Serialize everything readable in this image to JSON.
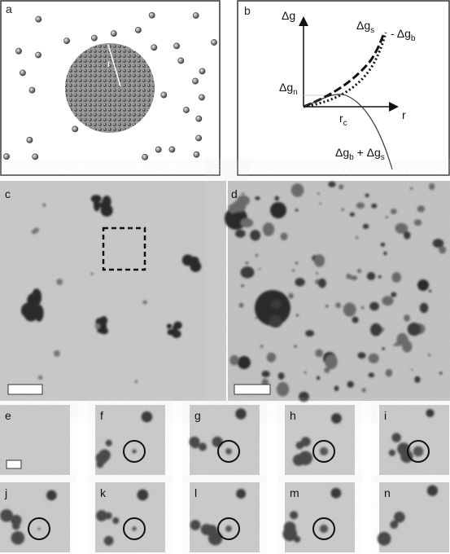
{
  "panel_a": {
    "letter": "a",
    "radius_label": "r"
  },
  "panel_b": {
    "letter": "b",
    "y_axis_label": "Δg",
    "x_axis_label": "r",
    "surface_label": [
      "Δg",
      "s"
    ],
    "bulk_label": [
      "- Δg",
      "b"
    ],
    "nucleation_label": [
      "Δg",
      "n"
    ],
    "critical_radius_label": [
      "r",
      "c"
    ],
    "total_label": [
      "Δg",
      "b",
      " + Δg",
      "s"
    ]
  },
  "panel_c": {
    "letter": "c"
  },
  "panel_d": {
    "letter": "d"
  },
  "sequence": [
    "e",
    "f",
    "g",
    "h",
    "i",
    "j",
    "k",
    "l",
    "m",
    "n"
  ]
}
